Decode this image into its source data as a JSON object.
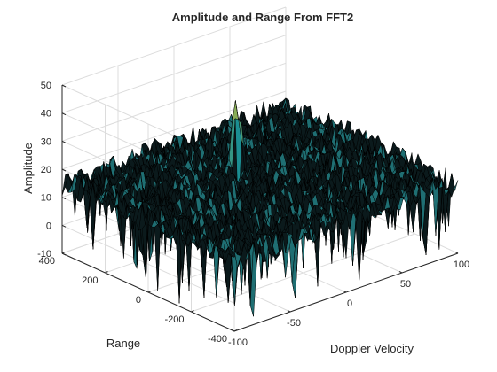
{
  "chart_data": {
    "type": "surface",
    "title": "Amplitude and Range From FFT2",
    "xlabel": "Doppler Velocity",
    "ylabel": "Range",
    "zlabel": "Amplitude",
    "xlim": [
      -100,
      100
    ],
    "ylim": [
      -400,
      400
    ],
    "zlim": [
      -10,
      50
    ],
    "xticks": [
      "-100",
      "-50",
      "0",
      "50",
      "100"
    ],
    "xtick_values": [
      -100,
      -50,
      0,
      50,
      100
    ],
    "yticks": [
      "-400",
      "-200",
      "0",
      "200",
      "400"
    ],
    "ytick_values": [
      -400,
      -200,
      0,
      200,
      400
    ],
    "zticks": [
      "-10",
      "0",
      "10",
      "20",
      "30",
      "40",
      "50"
    ],
    "ztick_values": [
      -10,
      0,
      10,
      20,
      30,
      40,
      50
    ],
    "grid": true,
    "colormap": "parula",
    "edge_color": "#000000",
    "noise_floor_amplitude": 15,
    "peaks": [
      {
        "doppler_velocity": 0,
        "range": 110,
        "amplitude": 44,
        "description": "target"
      }
    ]
  }
}
